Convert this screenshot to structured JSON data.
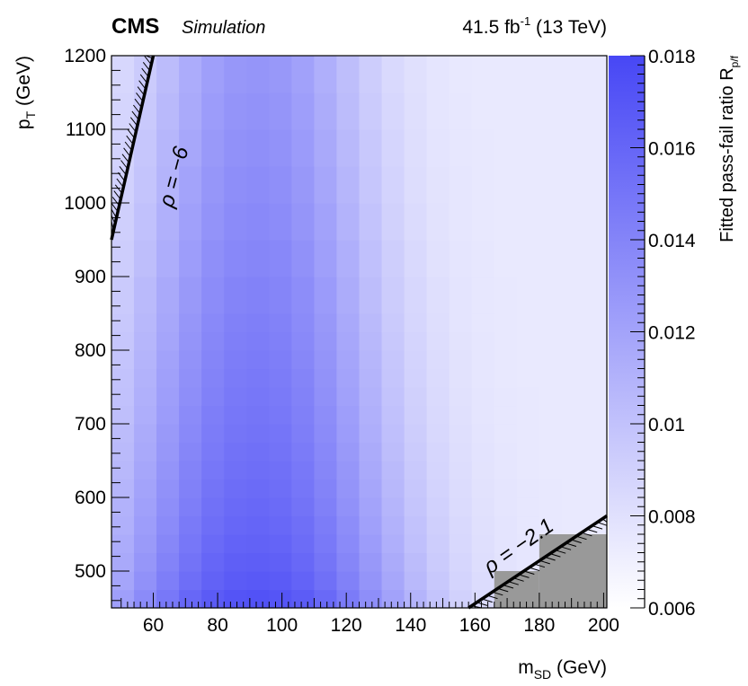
{
  "header": {
    "experiment": "CMS",
    "qualifier": "Simulation",
    "luminosity_prefix": "41.5 fb",
    "luminosity_exponent": "-1",
    "energy": " (13 TeV)"
  },
  "axes": {
    "x": {
      "label_main": "m",
      "label_sub": "SD",
      "label_unit": " (GeV)"
    },
    "y": {
      "label_main": "p",
      "label_sub": "T",
      "label_unit": " (GeV)"
    },
    "z": {
      "label_main": "Fitted pass-fail ratio R",
      "label_sub": "p/f"
    }
  },
  "annotations": {
    "rho_upper": "ρ = −6",
    "rho_lower": "ρ = −2.1"
  },
  "colors": {
    "z_low": "#ffffff",
    "z_high": "#4747f5",
    "masked": "#999999",
    "boundary_line": "#000000"
  },
  "chart_data": {
    "type": "heatmap",
    "title": "",
    "xlabel": "m_SD (GeV)",
    "ylabel": "p_T (GeV)",
    "zlabel": "Fitted pass-fail ratio R_p/f",
    "xlim": [
      47,
      201
    ],
    "ylim": [
      450,
      1200
    ],
    "zlim": [
      0.006,
      0.018
    ],
    "x_ticks": [
      60,
      80,
      100,
      120,
      140,
      160,
      180,
      200
    ],
    "y_ticks": [
      500,
      600,
      700,
      800,
      900,
      1000,
      1100,
      1200
    ],
    "z_ticks": [
      "0.006",
      "0.008",
      "0.01",
      "0.012",
      "0.014",
      "0.016",
      "0.018"
    ],
    "x_bin_edges": [
      47,
      54,
      61,
      68,
      75,
      82,
      89,
      96,
      103,
      110,
      117,
      124,
      131,
      138,
      145,
      152,
      159,
      166,
      173,
      180,
      187,
      194,
      201
    ],
    "y_bin_edges": [
      450,
      475,
      500,
      525,
      550,
      575,
      600,
      625,
      650,
      675,
      700,
      725,
      750,
      775,
      800,
      825,
      850,
      900,
      950,
      1000,
      1050,
      1100,
      1150,
      1200
    ],
    "surface_model": {
      "description": "R_p/f read off the colour scale as a smooth function of (m_SD, p_T)",
      "peak_value": 0.0178,
      "peak_at": [
        92,
        485
      ]
    },
    "masked_bins": [
      {
        "x": [
          166,
          180
        ],
        "y": [
          450,
          500
        ]
      },
      {
        "x": [
          180,
          201
        ],
        "y": [
          450,
          550
        ]
      }
    ],
    "contours": [
      {
        "label": "ρ = −6",
        "rho": -6,
        "points": [
          [
            47,
            950
          ],
          [
            60,
            1200
          ]
        ]
      },
      {
        "label": "ρ = −2.1",
        "rho": -2.1,
        "points": [
          [
            158,
            450
          ],
          [
            201,
            575
          ]
        ]
      }
    ]
  }
}
